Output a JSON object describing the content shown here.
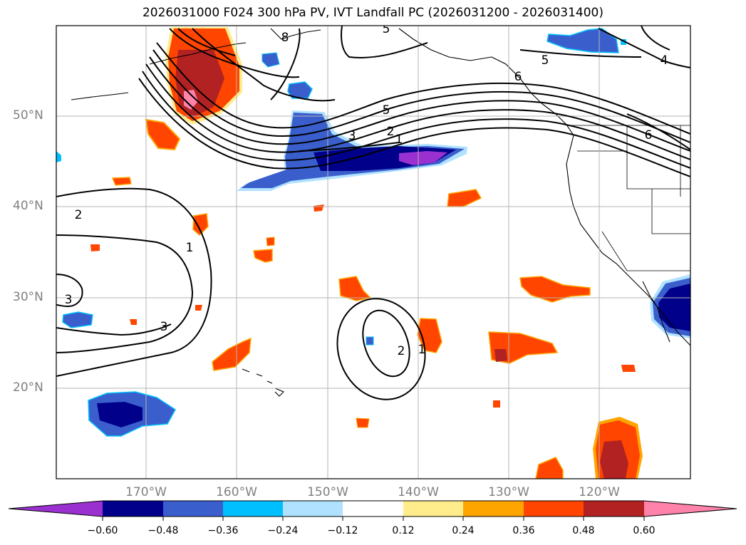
{
  "title": "2026031000 F024 300 hPa PV, IVT Landfall PC (2026031200 - 2026031400)",
  "lat_labels": [
    "50°N",
    "40°N",
    "30°N",
    "20°N"
  ],
  "lon_labels": [
    "170°W",
    "160°W",
    "150°W",
    "140°W",
    "130°W",
    "120°W"
  ],
  "colorbar": {
    "ticks": [
      "−0.60",
      "−0.48",
      "−0.36",
      "−0.24",
      "−0.12",
      "0.12",
      "0.24",
      "0.36",
      "0.48",
      "0.60"
    ],
    "colors": [
      "#9b30d0",
      "#00008b",
      "#3a5fcd",
      "#00bfff",
      "#b0e2ff",
      "#ffffff",
      "#ffec8b",
      "#ffa500",
      "#ff4500",
      "#b22222",
      "#ff82ab"
    ]
  },
  "contour_labels": [
    "5",
    "8",
    "5",
    "4",
    "6",
    "5",
    "3",
    "2",
    "1",
    "6",
    "2",
    "1",
    "3",
    "3",
    "2",
    "1"
  ]
}
